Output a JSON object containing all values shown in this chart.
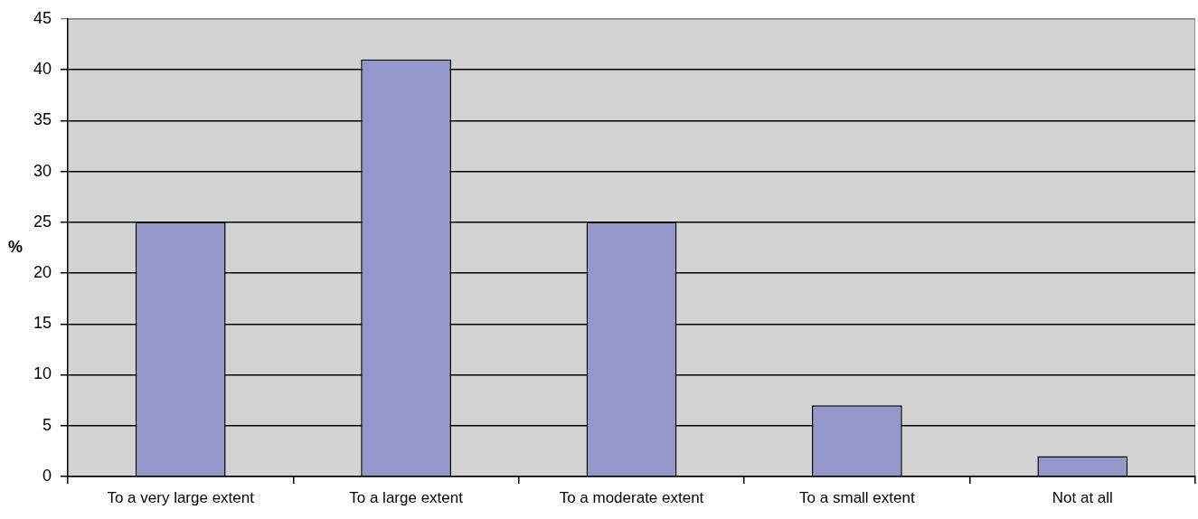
{
  "chart_data": {
    "type": "bar",
    "ylabel": "%",
    "categories": [
      "To a very large extent",
      "To a large extent",
      "To a moderate extent",
      "To a small extent",
      "Not at all"
    ],
    "values": [
      25,
      41,
      25,
      7,
      2
    ],
    "color": "#9497c9",
    "ylim": [
      0,
      45
    ],
    "yticks": [
      0,
      5,
      10,
      15,
      20,
      25,
      30,
      35,
      40,
      45
    ],
    "grid": "y"
  }
}
